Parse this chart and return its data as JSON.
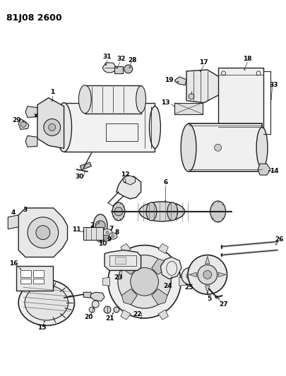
{
  "title": "81J08 2600",
  "bg_color": "#ffffff",
  "lc": "#222222",
  "fig_width": 4.05,
  "fig_height": 5.33,
  "dpi": 100
}
